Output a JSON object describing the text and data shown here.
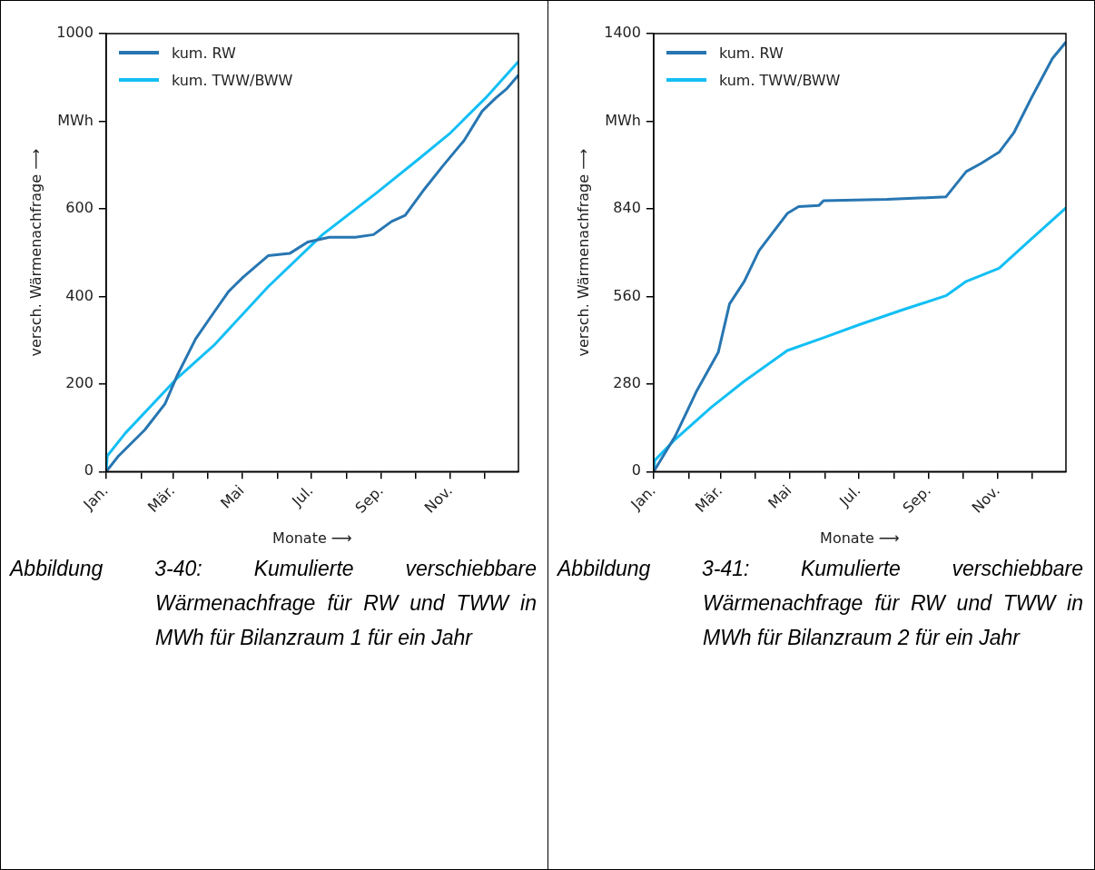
{
  "chart_data": [
    {
      "type": "line",
      "xlabel": "Monate ⟶",
      "ylabel": "versch. Wärmenachfrage ⟶",
      "legend": "top left",
      "grid": false,
      "xlim": [
        "--01-01",
        "--12-31"
      ],
      "ylim": [
        0,
        1000
      ],
      "xticks": [
        {
          "value": "--01-01",
          "label": "Jan."
        },
        {
          "value": "--02-01",
          "label": null
        },
        {
          "value": "--03-01",
          "label": "Mär."
        },
        {
          "value": "--04-01",
          "label": null
        },
        {
          "value": "--05-01",
          "label": "Mai"
        },
        {
          "value": "--06-01",
          "label": null
        },
        {
          "value": "--07-01",
          "label": "Jul."
        },
        {
          "value": "--08-01",
          "label": null
        },
        {
          "value": "--09-01",
          "label": "Sep."
        },
        {
          "value": "--10-01",
          "label": null
        },
        {
          "value": "--11-01",
          "label": "Nov."
        },
        {
          "value": "--12-01",
          "label": null
        }
      ],
      "yticks": [
        0,
        200,
        400,
        600,
        {
          "value": 800,
          "label": "MWh"
        },
        1000
      ],
      "series": [
        {
          "name": "kum. RW",
          "color": "#2776b2",
          "x": [
            "--01-01",
            "--01-12",
            "--02-04",
            "--02-22",
            "--03-05",
            "--03-21",
            "--04-06",
            "--04-19",
            "--05-02",
            "--05-24",
            "--06-12",
            "--06-28",
            "--07-17",
            "--08-09",
            "--08-25",
            "--09-10",
            "--09-22",
            "--10-09",
            "--10-25",
            "--11-13",
            "--11-29",
            "--12-11",
            "--12-21",
            "--12-31"
          ],
          "values": [
            0,
            36,
            95,
            155,
            221,
            303,
            363,
            411,
            444,
            493,
            498,
            524,
            535,
            535,
            541,
            571,
            585,
            645,
            697,
            756,
            823,
            853,
            875,
            905
          ]
        },
        {
          "name": "kum. TWW/BWW",
          "color": "#12bff4",
          "x": [
            "--01-01",
            "--01-02",
            "--01-18",
            "--03-05",
            "--04-06",
            "--05-24",
            "--07-11",
            "--08-28",
            "--10-05",
            "--10-31",
            "--12-02",
            "--12-31"
          ],
          "values": [
            0,
            36,
            88,
            214,
            288,
            422,
            541,
            637,
            716,
            771,
            853,
            936
          ]
        }
      ],
      "annotations": [
        "Abbildung 3-40: Kumulierte verschiebbare Wärmenachfrage für RW und TWW in MWh für Bilanzraum 1 für ein Jahr"
      ]
    },
    {
      "type": "line",
      "xlabel": "Monate ⟶",
      "ylabel": "versch. Wärmenachfrage ⟶",
      "legend": "top left",
      "grid": false,
      "xlim": [
        "--01-01",
        "--12-31"
      ],
      "ylim": [
        0,
        1400
      ],
      "xticks": [
        {
          "value": "--01-01",
          "label": "Jan."
        },
        {
          "value": "--02-01",
          "label": null
        },
        {
          "value": "--03-01",
          "label": "Mär."
        },
        {
          "value": "--04-01",
          "label": null
        },
        {
          "value": "--05-01",
          "label": "Mai"
        },
        {
          "value": "--06-01",
          "label": null
        },
        {
          "value": "--07-01",
          "label": "Jul."
        },
        {
          "value": "--08-01",
          "label": null
        },
        {
          "value": "--09-01",
          "label": "Sep."
        },
        {
          "value": "--10-01",
          "label": null
        },
        {
          "value": "--11-01",
          "label": "Nov."
        },
        {
          "value": "--12-01",
          "label": null
        }
      ],
      "yticks": [
        0,
        280,
        560,
        840,
        {
          "value": 1120,
          "label": "MWh"
        },
        1400
      ],
      "series": [
        {
          "name": "kum. RW",
          "color": "#2776b2",
          "x": [
            "--01-01",
            "--01-20",
            "--02-08",
            "--02-27",
            "--03-09",
            "--03-22",
            "--04-04",
            "--04-16",
            "--04-29",
            "--05-09",
            "--05-27",
            "--05-31",
            "--07-26",
            "--09-16",
            "--10-04",
            "--10-17",
            "--11-02",
            "--11-15",
            "--11-30",
            "--12-19",
            "--12-31"
          ],
          "values": [
            0,
            113,
            258,
            381,
            536,
            608,
            706,
            763,
            825,
            847,
            851,
            866,
            870,
            878,
            959,
            985,
            1021,
            1083,
            1191,
            1320,
            1373
          ]
        },
        {
          "name": "kum. TWW/BWW",
          "color": "#12bff4",
          "x": [
            "--01-01",
            "--01-02",
            "--01-20",
            "--02-21",
            "--03-22",
            "--04-29",
            "--05-31",
            "--07-01",
            "--08-08",
            "--09-16",
            "--10-04",
            "--11-02",
            "--11-30",
            "--12-31"
          ],
          "values": [
            0,
            36,
            103,
            206,
            289,
            387,
            428,
            469,
            516,
            562,
            608,
            650,
            742,
            843
          ]
        }
      ],
      "annotations": [
        "Abbildung 3-41: Kumulierte verschiebbare Wärmenachfrage für RW und TWW in MWh für Bilanzraum 2 für ein Jahr"
      ]
    }
  ]
}
